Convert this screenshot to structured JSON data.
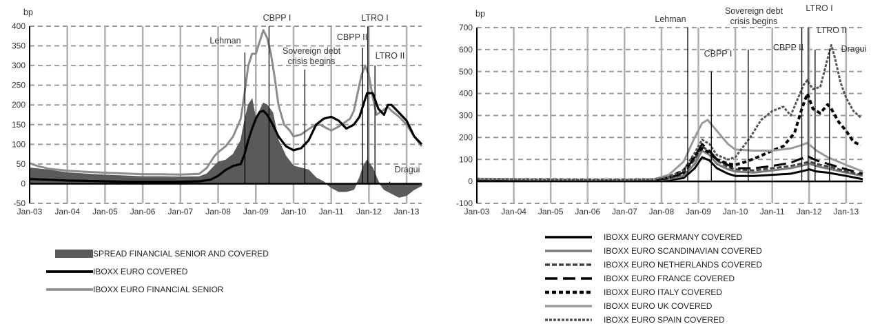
{
  "colors": {
    "spread_fill": "#5a5a5a",
    "covered_black": "#000000",
    "financial_gray": "#8c8c8c",
    "grid": "#9a9a9a",
    "event_line": "#000000"
  },
  "chart_data": [
    {
      "type": "line",
      "unit_label": "bp",
      "x_ticks": [
        "Jan-03",
        "Jan-04",
        "Jan-05",
        "Jan-06",
        "Jan-07",
        "Jan-08",
        "Jan-09",
        "Jan-10",
        "Jan-11",
        "Jan-12",
        "Jan-13"
      ],
      "x_range": [
        2003.0,
        2013.4
      ],
      "ylim": [
        -50,
        400
      ],
      "y_ticks": [
        -50,
        0,
        50,
        100,
        150,
        200,
        250,
        300,
        350,
        400
      ],
      "grid": true,
      "legend_position": "bottom-left",
      "events": [
        {
          "label": "Lehman",
          "x": 2008.71,
          "top": 333
        },
        {
          "label": "CBPP I",
          "x": 2009.35,
          "top": 400
        },
        {
          "label": "Sovereign debt\ncrisis begins",
          "x": 2010.3,
          "top": 290
        },
        {
          "label": "CBPP II",
          "x": 2011.83,
          "top": 345
        },
        {
          "label": "LTRO I",
          "x": 2011.97,
          "top": 400
        },
        {
          "label": "LTRO II",
          "x": 2012.16,
          "top": 300
        },
        {
          "label": "Dragui",
          "x": 2012.55,
          "top": 5
        }
      ],
      "series": [
        {
          "name": "IBOXX EURO FINANCIAL SENIOR",
          "style": "gray",
          "x": [
            2003.0,
            2003.2,
            2003.5,
            2004.0,
            2004.5,
            2005.0,
            2005.5,
            2006.0,
            2006.5,
            2007.0,
            2007.5,
            2007.7,
            2007.9,
            2008.0,
            2008.2,
            2008.4,
            2008.6,
            2008.7,
            2008.8,
            2008.9,
            2009.0,
            2009.1,
            2009.2,
            2009.3,
            2009.4,
            2009.5,
            2009.6,
            2009.75,
            2009.9,
            2010.0,
            2010.2,
            2010.35,
            2010.5,
            2010.7,
            2010.9,
            2011.0,
            2011.2,
            2011.35,
            2011.5,
            2011.6,
            2011.7,
            2011.8,
            2011.9,
            2012.0,
            2012.1,
            2012.2,
            2012.35,
            2012.5,
            2012.6,
            2012.8,
            2013.0,
            2013.2,
            2013.4
          ],
          "values": [
            52,
            45,
            38,
            33,
            30,
            28,
            26,
            24,
            24,
            23,
            25,
            40,
            70,
            80,
            95,
            120,
            165,
            230,
            300,
            330,
            330,
            360,
            390,
            370,
            330,
            270,
            200,
            150,
            135,
            120,
            125,
            135,
            145,
            150,
            140,
            135,
            145,
            155,
            165,
            185,
            230,
            275,
            300,
            275,
            220,
            175,
            185,
            195,
            185,
            170,
            150,
            120,
            95
          ]
        },
        {
          "name": "IBOXX EURO COVERED",
          "style": "black",
          "x": [
            2003.0,
            2003.5,
            2004.0,
            2004.5,
            2005.0,
            2005.5,
            2006.0,
            2006.5,
            2007.0,
            2007.5,
            2007.8,
            2008.0,
            2008.2,
            2008.4,
            2008.6,
            2008.7,
            2008.8,
            2008.9,
            2009.0,
            2009.1,
            2009.2,
            2009.3,
            2009.45,
            2009.6,
            2009.8,
            2010.0,
            2010.2,
            2010.4,
            2010.6,
            2010.8,
            2011.0,
            2011.2,
            2011.4,
            2011.6,
            2011.75,
            2011.85,
            2011.95,
            2012.1,
            2012.25,
            2012.4,
            2012.5,
            2012.6,
            2012.8,
            2013.0,
            2013.2,
            2013.4
          ],
          "values": [
            12,
            10,
            8,
            7,
            6,
            5,
            5,
            5,
            5,
            6,
            10,
            20,
            35,
            45,
            50,
            75,
            110,
            140,
            165,
            182,
            185,
            175,
            150,
            120,
            95,
            85,
            90,
            110,
            150,
            165,
            170,
            160,
            140,
            150,
            170,
            200,
            230,
            230,
            190,
            175,
            200,
            200,
            180,
            160,
            120,
            100
          ]
        }
      ],
      "bar_series": {
        "name": "SPREAD FINANCIAL SENIOR AND COVERED",
        "x": [
          2003.0,
          2003.5,
          2004.0,
          2004.5,
          2005.0,
          2005.5,
          2006.0,
          2006.5,
          2007.0,
          2007.5,
          2007.7,
          2007.9,
          2008.0,
          2008.2,
          2008.4,
          2008.6,
          2008.7,
          2008.8,
          2008.9,
          2009.0,
          2009.1,
          2009.2,
          2009.3,
          2009.45,
          2009.6,
          2009.8,
          2010.0,
          2010.2,
          2010.4,
          2010.6,
          2010.8,
          2011.0,
          2011.2,
          2011.4,
          2011.6,
          2011.75,
          2011.85,
          2011.95,
          2012.1,
          2012.25,
          2012.4,
          2012.6,
          2012.8,
          2013.0,
          2013.2,
          2013.4
        ],
        "values": [
          40,
          35,
          28,
          25,
          22,
          20,
          18,
          18,
          17,
          18,
          25,
          45,
          55,
          60,
          75,
          110,
          160,
          200,
          215,
          165,
          185,
          205,
          200,
          180,
          110,
          70,
          45,
          40,
          35,
          15,
          5,
          -10,
          -20,
          -20,
          -15,
          15,
          45,
          60,
          40,
          5,
          -15,
          -25,
          -35,
          -30,
          -15,
          -5
        ]
      },
      "legend": [
        {
          "label": "SPREAD FINANCIAL SENIOR AND COVERED",
          "swatch": "bar"
        },
        {
          "label": "IBOXX EURO COVERED",
          "swatch": "black"
        },
        {
          "label": "IBOXX EURO FINANCIAL SENIOR",
          "swatch": "gray"
        }
      ]
    },
    {
      "type": "line",
      "unit_label": "bp",
      "x_ticks": [
        "Jan-03",
        "Jan-04",
        "Jan-05",
        "Jan-06",
        "Jan-07",
        "Jan-08",
        "Jan-09",
        "Jan-10",
        "Jan-11",
        "Jan-12",
        "Jan-13"
      ],
      "x_range": [
        2003.0,
        2013.45
      ],
      "ylim": [
        -100,
        700
      ],
      "y_ticks": [
        -100,
        0,
        100,
        200,
        300,
        400,
        500,
        600,
        700
      ],
      "grid": true,
      "legend_position": "bottom",
      "events": [
        {
          "label": "Lehman",
          "x": 2008.71,
          "top": 700
        },
        {
          "label": "CBPP I",
          "x": 2009.35,
          "top": 500
        },
        {
          "label": "Sovereign debt\ncrisis begins",
          "x": 2010.35,
          "top": 600
        },
        {
          "label": "CBPP II",
          "x": 2011.8,
          "top": 700
        },
        {
          "label": "LTRO I",
          "x": 2011.97,
          "top": 700
        },
        {
          "label": "LTRO II",
          "x": 2012.16,
          "top": 600
        },
        {
          "label": "Dragui",
          "x": 2012.55,
          "top": 600
        }
      ],
      "series": [
        {
          "name": "IBOXX EURO GERMANY COVERED",
          "style": "germany",
          "x": [
            2003.0,
            2004.0,
            2005.0,
            2006.0,
            2007.0,
            2007.8,
            2008.2,
            2008.6,
            2008.9,
            2009.1,
            2009.3,
            2009.5,
            2009.8,
            2010.0,
            2010.5,
            2011.0,
            2011.5,
            2011.9,
            2012.0,
            2012.2,
            2012.5,
            2013.0,
            2013.45
          ],
          "values": [
            5,
            5,
            4,
            3,
            3,
            4,
            6,
            15,
            60,
            110,
            95,
            60,
            35,
            25,
            25,
            30,
            35,
            50,
            55,
            45,
            40,
            25,
            10
          ]
        },
        {
          "name": "IBOXX EURO SCANDINAVIAN COVERED",
          "style": "scandinavian",
          "x": [
            2003.0,
            2004.0,
            2005.0,
            2006.0,
            2007.0,
            2007.8,
            2008.2,
            2008.6,
            2008.9,
            2009.1,
            2009.3,
            2009.5,
            2009.8,
            2010.0,
            2010.5,
            2011.0,
            2011.5,
            2011.9,
            2012.0,
            2012.3,
            2012.6,
            2013.0,
            2013.45
          ],
          "values": [
            6,
            6,
            5,
            4,
            4,
            5,
            10,
            25,
            80,
            140,
            120,
            80,
            55,
            45,
            40,
            50,
            60,
            75,
            80,
            65,
            55,
            40,
            25
          ]
        },
        {
          "name": "IBOXX EURO NETHERLANDS COVERED",
          "style": "netherlands",
          "x": [
            2003.0,
            2004.0,
            2005.0,
            2006.0,
            2007.0,
            2007.8,
            2008.2,
            2008.6,
            2008.9,
            2009.1,
            2009.3,
            2009.5,
            2009.8,
            2010.0,
            2010.5,
            2011.0,
            2011.5,
            2011.9,
            2012.0,
            2012.3,
            2012.6,
            2013.0,
            2013.45
          ],
          "values": [
            8,
            7,
            6,
            5,
            5,
            6,
            12,
            35,
            100,
            160,
            135,
            95,
            65,
            55,
            50,
            60,
            70,
            85,
            90,
            75,
            65,
            45,
            30
          ]
        },
        {
          "name": "IBOXX EURO FRANCE COVERED",
          "style": "france",
          "x": [
            2003.0,
            2004.0,
            2005.0,
            2006.0,
            2007.0,
            2007.8,
            2008.2,
            2008.6,
            2008.9,
            2009.1,
            2009.3,
            2009.5,
            2009.8,
            2010.0,
            2010.5,
            2011.0,
            2011.5,
            2011.8,
            2011.95,
            2012.2,
            2012.5,
            2013.0,
            2013.45
          ],
          "values": [
            9,
            8,
            7,
            6,
            6,
            7,
            15,
            40,
            110,
            170,
            140,
            100,
            75,
            60,
            60,
            70,
            85,
            105,
            115,
            95,
            80,
            55,
            35
          ]
        },
        {
          "name": "IBOXX EURO ITALY COVERED",
          "style": "italy",
          "x": [
            2003.0,
            2004.0,
            2005.0,
            2006.0,
            2007.0,
            2007.8,
            2008.2,
            2008.6,
            2008.9,
            2009.1,
            2009.3,
            2009.5,
            2009.8,
            2010.0,
            2010.3,
            2010.6,
            2011.0,
            2011.3,
            2011.6,
            2011.8,
            2011.95,
            2012.1,
            2012.3,
            2012.5,
            2012.6,
            2012.8,
            2013.0,
            2013.2,
            2013.4
          ],
          "values": [
            10,
            9,
            8,
            7,
            7,
            9,
            20,
            50,
            120,
            150,
            130,
            100,
            80,
            75,
            90,
            110,
            140,
            160,
            220,
            330,
            400,
            330,
            310,
            350,
            330,
            270,
            230,
            180,
            165
          ]
        },
        {
          "name": "IBOXX EURO UK COVERED",
          "style": "uk",
          "x": [
            2003.0,
            2004.0,
            2005.0,
            2006.0,
            2007.0,
            2007.8,
            2008.2,
            2008.6,
            2008.9,
            2009.1,
            2009.25,
            2009.5,
            2009.8,
            2010.0,
            2010.5,
            2011.0,
            2011.5,
            2011.8,
            2011.95,
            2012.2,
            2012.5,
            2013.0,
            2013.45
          ],
          "values": [
            12,
            10,
            8,
            7,
            7,
            10,
            30,
            90,
            200,
            265,
            280,
            230,
            170,
            145,
            140,
            140,
            150,
            165,
            175,
            140,
            110,
            75,
            45
          ]
        },
        {
          "name": "IBOXX EURO SPAIN COVERED",
          "style": "spain",
          "x": [
            2003.0,
            2004.0,
            2005.0,
            2006.0,
            2007.0,
            2007.8,
            2008.2,
            2008.6,
            2008.9,
            2009.1,
            2009.3,
            2009.5,
            2009.8,
            2010.0,
            2010.4,
            2010.7,
            2011.0,
            2011.3,
            2011.5,
            2011.7,
            2011.85,
            2011.95,
            2012.1,
            2012.3,
            2012.5,
            2012.6,
            2012.7,
            2012.85,
            2013.0,
            2013.2,
            2013.4
          ],
          "values": [
            10,
            9,
            8,
            7,
            7,
            9,
            20,
            50,
            130,
            190,
            170,
            120,
            100,
            110,
            200,
            280,
            320,
            340,
            300,
            380,
            440,
            460,
            420,
            430,
            560,
            620,
            560,
            450,
            380,
            320,
            290
          ]
        }
      ],
      "legend": [
        {
          "label": "IBOXX EURO GERMANY COVERED",
          "swatch": "germany"
        },
        {
          "label": "IBOXX EURO SCANDINAVIAN COVERED",
          "swatch": "scandinavian"
        },
        {
          "label": "IBOXX EURO NETHERLANDS COVERED",
          "swatch": "netherlands"
        },
        {
          "label": "IBOXX EURO FRANCE COVERED",
          "swatch": "france"
        },
        {
          "label": "IBOXX EURO ITALY COVERED",
          "swatch": "italy"
        },
        {
          "label": "IBOXX EURO UK COVERED",
          "swatch": "uk"
        },
        {
          "label": "IBOXX EURO SPAIN COVERED",
          "swatch": "spain"
        }
      ]
    }
  ]
}
